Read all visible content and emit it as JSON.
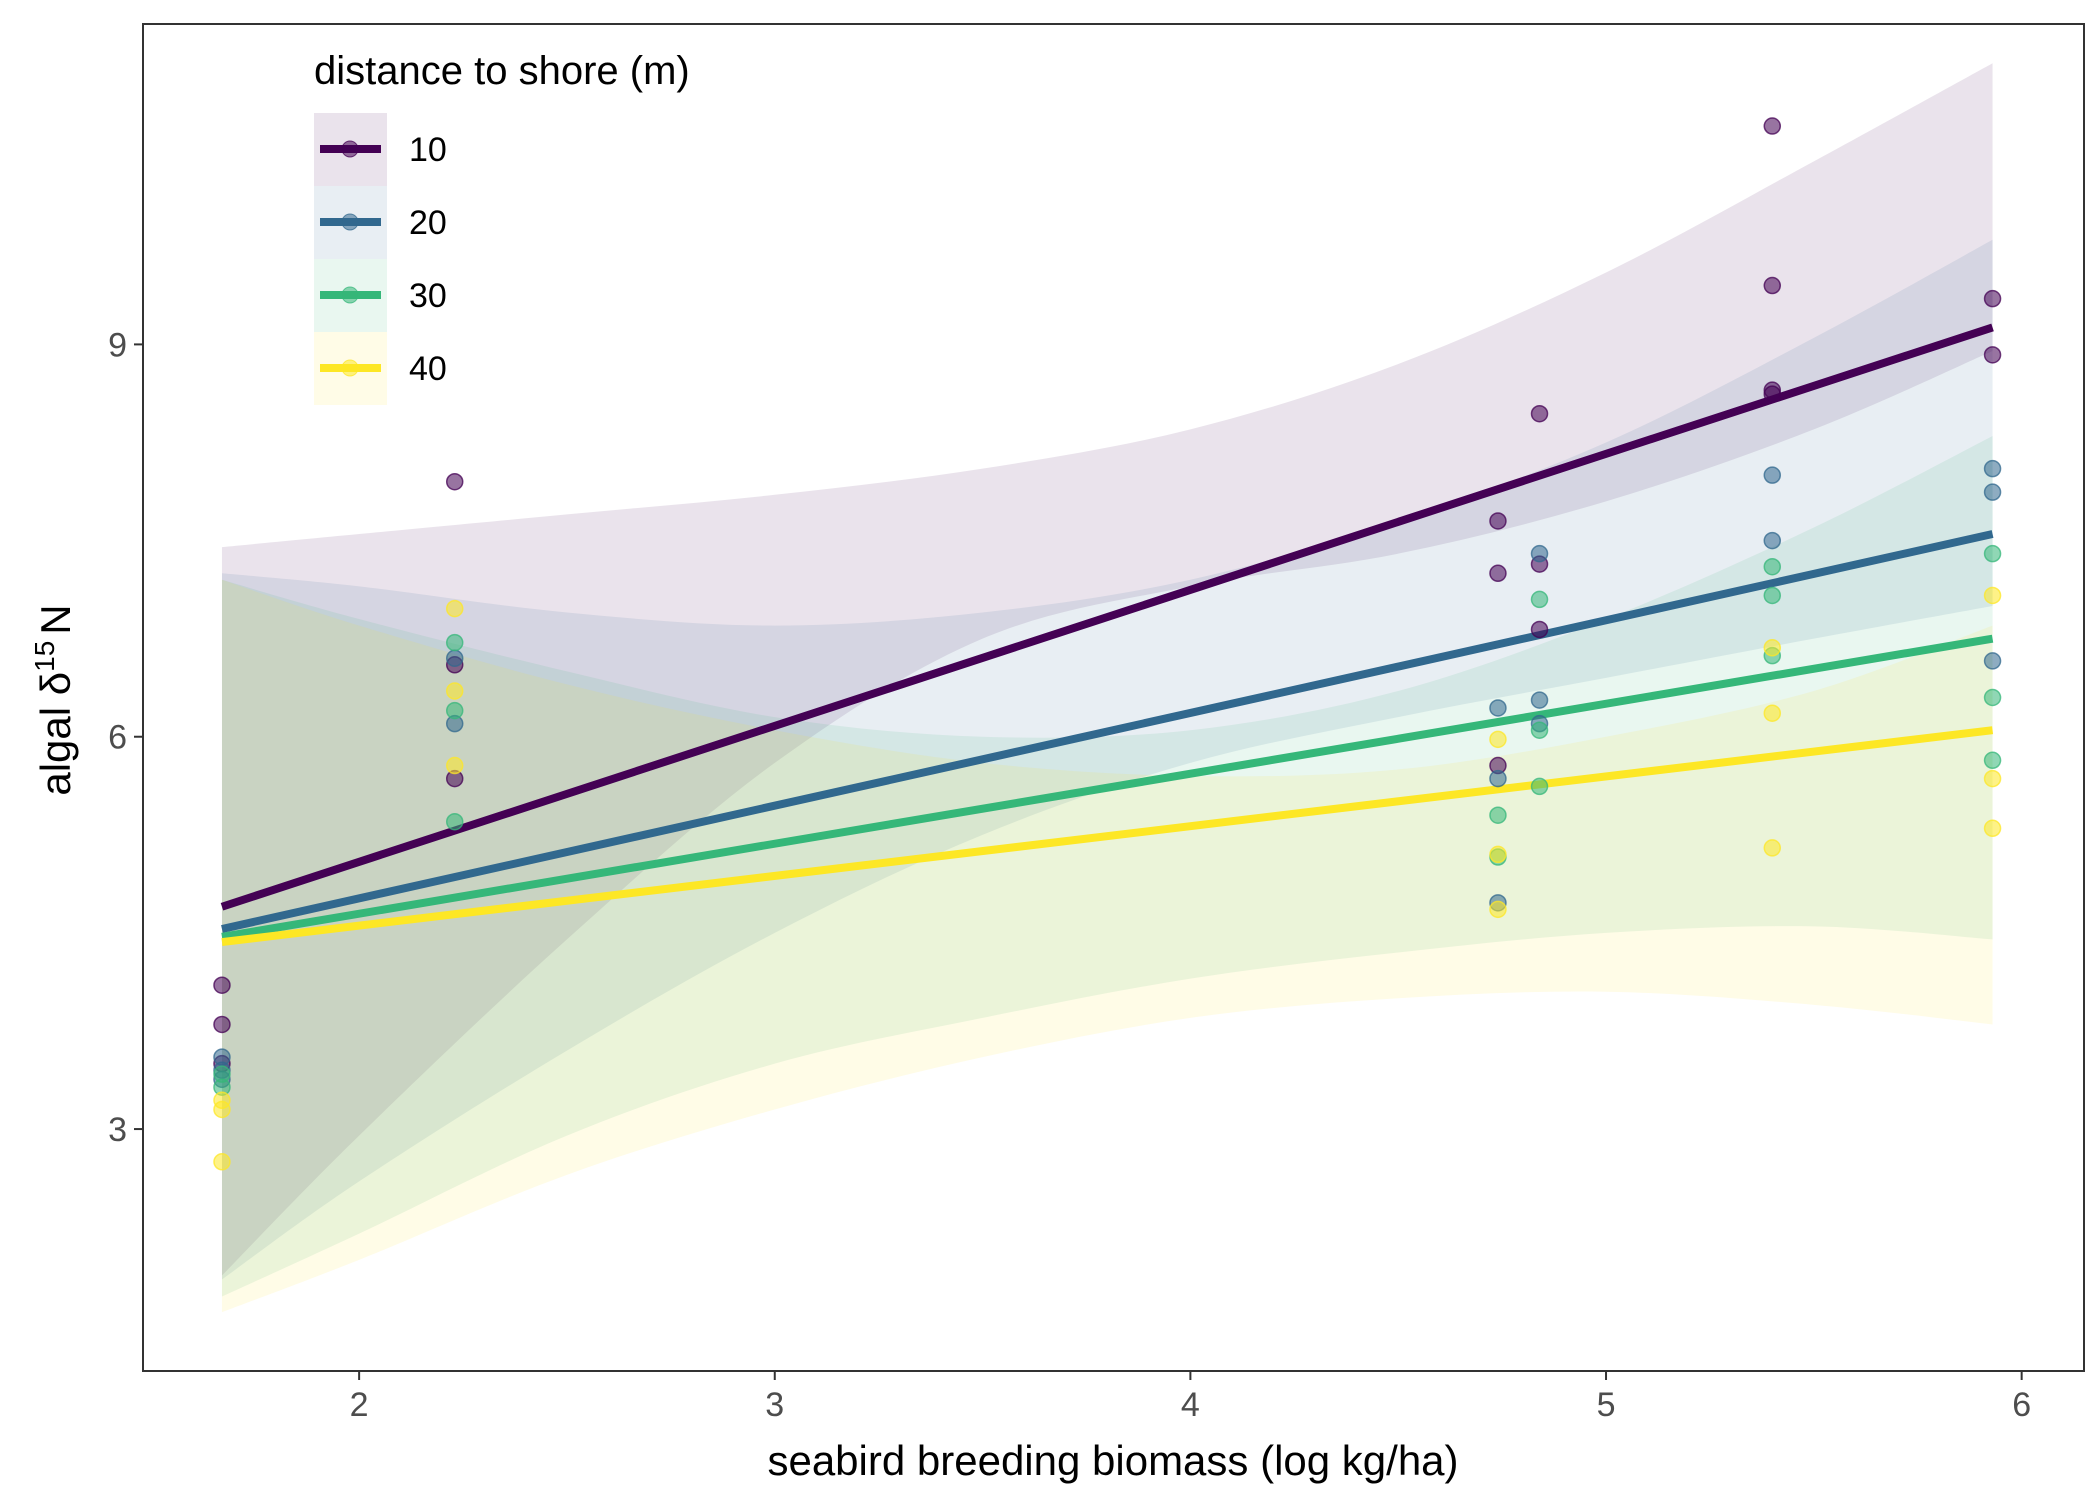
{
  "chart_data": {
    "type": "scatter",
    "xlabel": "seabird breeding biomass (log kg/ha)",
    "ylabel": {
      "prefix": "algal δ",
      "sup": "15",
      "suffix": "N"
    },
    "xlim": [
      1.48,
      6.15
    ],
    "ylim": [
      1.15,
      11.45
    ],
    "x_ticks": [
      2,
      3,
      4,
      5,
      6
    ],
    "y_ticks": [
      3,
      6,
      9
    ],
    "grid": false,
    "legend": {
      "title": "distance to shore (m)",
      "placement": "top-left"
    },
    "series": [
      {
        "name": "10",
        "color": "#440154",
        "fit": {
          "x": [
            1.67,
            5.93
          ],
          "y": [
            4.7,
            9.13
          ]
        },
        "band": {
          "x": [
            1.67,
            2.0,
            2.5,
            3.0,
            3.5,
            4.0,
            4.5,
            5.0,
            5.5,
            5.93
          ],
          "lower": [
            1.88,
            2.95,
            4.45,
            5.8,
            6.75,
            7.15,
            7.4,
            7.8,
            8.35,
            8.95
          ],
          "upper": [
            7.45,
            7.55,
            7.7,
            7.85,
            8.05,
            8.35,
            8.85,
            9.55,
            10.4,
            11.15
          ]
        },
        "points": [
          [
            1.67,
            4.1
          ],
          [
            1.67,
            3.8
          ],
          [
            1.67,
            3.5
          ],
          [
            2.23,
            7.95
          ],
          [
            2.23,
            6.55
          ],
          [
            2.23,
            5.68
          ],
          [
            4.74,
            7.65
          ],
          [
            4.74,
            7.25
          ],
          [
            4.74,
            5.78
          ],
          [
            4.84,
            8.47
          ],
          [
            4.84,
            7.32
          ],
          [
            4.84,
            6.82
          ],
          [
            5.4,
            10.67
          ],
          [
            5.4,
            9.45
          ],
          [
            5.4,
            8.65
          ],
          [
            5.4,
            8.62
          ],
          [
            5.93,
            9.35
          ],
          [
            5.93,
            8.92
          ]
        ]
      },
      {
        "name": "20",
        "color": "#31688e",
        "fit": {
          "x": [
            1.67,
            5.93
          ],
          "y": [
            4.53,
            7.55
          ]
        },
        "band": {
          "x": [
            1.67,
            2.0,
            2.5,
            3.0,
            3.5,
            4.0,
            4.5,
            5.0,
            5.5,
            5.93
          ],
          "lower": [
            1.85,
            2.6,
            3.6,
            4.5,
            5.25,
            5.8,
            6.15,
            6.45,
            6.75,
            7.0
          ],
          "upper": [
            7.25,
            7.15,
            6.95,
            6.85,
            6.95,
            7.2,
            7.65,
            8.25,
            9.05,
            9.8
          ]
        },
        "points": [
          [
            1.67,
            3.55
          ],
          [
            1.67,
            3.45
          ],
          [
            1.67,
            3.38
          ],
          [
            2.23,
            6.6
          ],
          [
            2.23,
            6.1
          ],
          [
            4.74,
            6.22
          ],
          [
            4.74,
            5.68
          ],
          [
            4.74,
            4.73
          ],
          [
            4.84,
            7.4
          ],
          [
            4.84,
            6.28
          ],
          [
            4.84,
            6.1
          ],
          [
            5.4,
            8.0
          ],
          [
            5.4,
            7.5
          ],
          [
            5.93,
            8.05
          ],
          [
            5.93,
            7.87
          ],
          [
            5.93,
            6.58
          ]
        ]
      },
      {
        "name": "30",
        "color": "#35b779",
        "fit": {
          "x": [
            1.67,
            5.93
          ],
          "y": [
            4.47,
            6.75
          ]
        },
        "band": {
          "x": [
            1.67,
            2.0,
            2.5,
            3.0,
            3.5,
            4.0,
            4.5,
            5.0,
            5.5,
            5.93
          ],
          "lower": [
            1.72,
            2.2,
            2.95,
            3.5,
            3.85,
            4.15,
            4.35,
            4.5,
            4.55,
            4.45
          ],
          "upper": [
            7.2,
            6.9,
            6.5,
            6.15,
            6.0,
            6.05,
            6.35,
            6.9,
            7.6,
            8.3
          ]
        },
        "points": [
          [
            1.67,
            3.42
          ],
          [
            1.67,
            3.32
          ],
          [
            2.23,
            6.72
          ],
          [
            2.23,
            6.2
          ],
          [
            2.23,
            5.35
          ],
          [
            4.74,
            5.4
          ],
          [
            4.74,
            5.08
          ],
          [
            4.84,
            7.05
          ],
          [
            4.84,
            6.05
          ],
          [
            4.84,
            5.62
          ],
          [
            5.4,
            7.3
          ],
          [
            5.4,
            7.08
          ],
          [
            5.4,
            6.62
          ],
          [
            5.93,
            7.4
          ],
          [
            5.93,
            6.3
          ],
          [
            5.93,
            5.82
          ]
        ]
      },
      {
        "name": "40",
        "color": "#fde725",
        "fit": {
          "x": [
            1.67,
            5.93
          ],
          "y": [
            4.43,
            6.05
          ]
        },
        "band": {
          "x": [
            1.67,
            2.0,
            2.5,
            3.0,
            3.5,
            4.0,
            4.5,
            5.0,
            5.5,
            5.93
          ],
          "lower": [
            1.6,
            2.0,
            2.65,
            3.15,
            3.55,
            3.85,
            4.0,
            4.05,
            3.95,
            3.8
          ],
          "upper": [
            7.2,
            6.85,
            6.4,
            6.05,
            5.8,
            5.7,
            5.75,
            6.0,
            6.35,
            6.85
          ]
        },
        "points": [
          [
            1.67,
            3.22
          ],
          [
            1.67,
            3.15
          ],
          [
            1.67,
            2.75
          ],
          [
            2.23,
            6.98
          ],
          [
            2.23,
            6.35
          ],
          [
            2.23,
            5.78
          ],
          [
            4.74,
            5.98
          ],
          [
            4.74,
            5.1
          ],
          [
            4.74,
            4.68
          ],
          [
            5.4,
            6.68
          ],
          [
            5.4,
            6.18
          ],
          [
            5.4,
            5.15
          ],
          [
            5.93,
            7.08
          ],
          [
            5.93,
            5.68
          ],
          [
            5.93,
            5.3
          ]
        ]
      }
    ]
  }
}
